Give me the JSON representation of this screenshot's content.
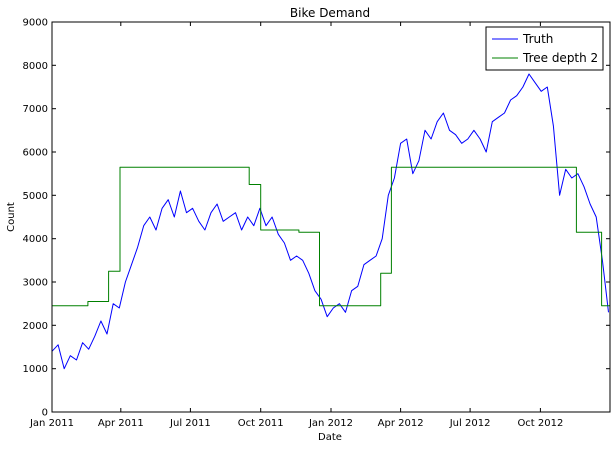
{
  "chart_data": {
    "type": "line",
    "title": "Bike Demand",
    "xlabel": "Date",
    "ylabel": "Count",
    "xlim": [
      "2011-01-01",
      "2012-12-31"
    ],
    "ylim": [
      0,
      9000
    ],
    "x_ticks": [
      "2011-01-01",
      "2011-04-01",
      "2011-07-01",
      "2011-10-01",
      "2012-01-01",
      "2012-04-01",
      "2012-07-01",
      "2012-10-01"
    ],
    "x_tick_labels": [
      "Jan 2011",
      "Apr 2011",
      "Jul 2011",
      "Oct 2011",
      "Jan 2012",
      "Apr 2012",
      "Jul 2012",
      "Oct 2012"
    ],
    "y_ticks": [
      0,
      1000,
      2000,
      3000,
      4000,
      5000,
      6000,
      7000,
      8000,
      9000
    ],
    "y_tick_labels": [
      "0",
      "1000",
      "2000",
      "3000",
      "4000",
      "5000",
      "6000",
      "7000",
      "8000",
      "9000"
    ],
    "grid": false,
    "legend_position": "top-right",
    "series": [
      {
        "name": "Truth",
        "color": "#0000ff",
        "x": [
          "2011-01-01",
          "2011-01-09",
          "2011-01-17",
          "2011-01-25",
          "2011-02-02",
          "2011-02-10",
          "2011-02-18",
          "2011-02-26",
          "2011-03-06",
          "2011-03-14",
          "2011-03-22",
          "2011-03-30",
          "2011-04-07",
          "2011-04-15",
          "2011-04-23",
          "2011-05-01",
          "2011-05-09",
          "2011-05-17",
          "2011-05-25",
          "2011-06-02",
          "2011-06-10",
          "2011-06-18",
          "2011-06-26",
          "2011-07-04",
          "2011-07-12",
          "2011-07-20",
          "2011-07-28",
          "2011-08-05",
          "2011-08-13",
          "2011-08-21",
          "2011-08-29",
          "2011-09-06",
          "2011-09-14",
          "2011-09-22",
          "2011-09-30",
          "2011-10-08",
          "2011-10-16",
          "2011-10-24",
          "2011-11-01",
          "2011-11-09",
          "2011-11-17",
          "2011-11-25",
          "2011-12-03",
          "2011-12-11",
          "2011-12-19",
          "2011-12-27",
          "2012-01-04",
          "2012-01-12",
          "2012-01-20",
          "2012-01-28",
          "2012-02-05",
          "2012-02-13",
          "2012-02-21",
          "2012-02-29",
          "2012-03-08",
          "2012-03-16",
          "2012-03-24",
          "2012-04-01",
          "2012-04-09",
          "2012-04-17",
          "2012-04-25",
          "2012-05-03",
          "2012-05-11",
          "2012-05-19",
          "2012-05-27",
          "2012-06-04",
          "2012-06-12",
          "2012-06-20",
          "2012-06-28",
          "2012-07-06",
          "2012-07-14",
          "2012-07-22",
          "2012-07-30",
          "2012-08-07",
          "2012-08-15",
          "2012-08-23",
          "2012-08-31",
          "2012-09-08",
          "2012-09-16",
          "2012-09-24",
          "2012-10-02",
          "2012-10-10",
          "2012-10-18",
          "2012-10-26",
          "2012-11-03",
          "2012-11-11",
          "2012-11-19",
          "2012-11-27",
          "2012-12-05",
          "2012-12-13",
          "2012-12-21",
          "2012-12-29"
        ],
        "values": [
          1400,
          1550,
          1000,
          1300,
          1200,
          1600,
          1450,
          1750,
          2100,
          1800,
          2500,
          2400,
          3000,
          3400,
          3800,
          4300,
          4500,
          4200,
          4700,
          4900,
          4500,
          5100,
          4600,
          4700,
          4400,
          4200,
          4600,
          4800,
          4400,
          4500,
          4600,
          4200,
          4500,
          4300,
          4700,
          4300,
          4500,
          4100,
          3900,
          3500,
          3600,
          3500,
          3200,
          2800,
          2600,
          2200,
          2400,
          2500,
          2300,
          2800,
          2900,
          3400,
          3500,
          3600,
          4000,
          5000,
          5400,
          6200,
          6300,
          5500,
          5800,
          6500,
          6300,
          6700,
          6900,
          6500,
          6400,
          6200,
          6300,
          6500,
          6300,
          6000,
          6700,
          6800,
          6900,
          7200,
          7300,
          7500,
          7800,
          7600,
          7400,
          7500,
          6600,
          5000,
          5600,
          5400,
          5500,
          5200,
          4800,
          4500,
          3500,
          2300
        ]
      },
      {
        "name": "Tree depth 2",
        "color": "#008000",
        "x": [
          "2011-01-01",
          "2011-02-17",
          "2011-02-17",
          "2011-03-16",
          "2011-03-16",
          "2011-03-31",
          "2011-03-31",
          "2011-09-16",
          "2011-09-16",
          "2011-10-01",
          "2011-10-01",
          "2011-11-20",
          "2011-11-20",
          "2011-12-17",
          "2011-12-17",
          "2012-03-06",
          "2012-03-06",
          "2012-03-20",
          "2012-03-20",
          "2012-11-17",
          "2012-11-17",
          "2012-12-20",
          "2012-12-20",
          "2012-12-31"
        ],
        "values": [
          2450,
          2450,
          2550,
          2550,
          3250,
          3250,
          5650,
          5650,
          5250,
          5250,
          4200,
          4200,
          4150,
          4150,
          2450,
          2450,
          3200,
          3200,
          5650,
          5650,
          4150,
          4150,
          2450,
          2450
        ]
      }
    ]
  }
}
